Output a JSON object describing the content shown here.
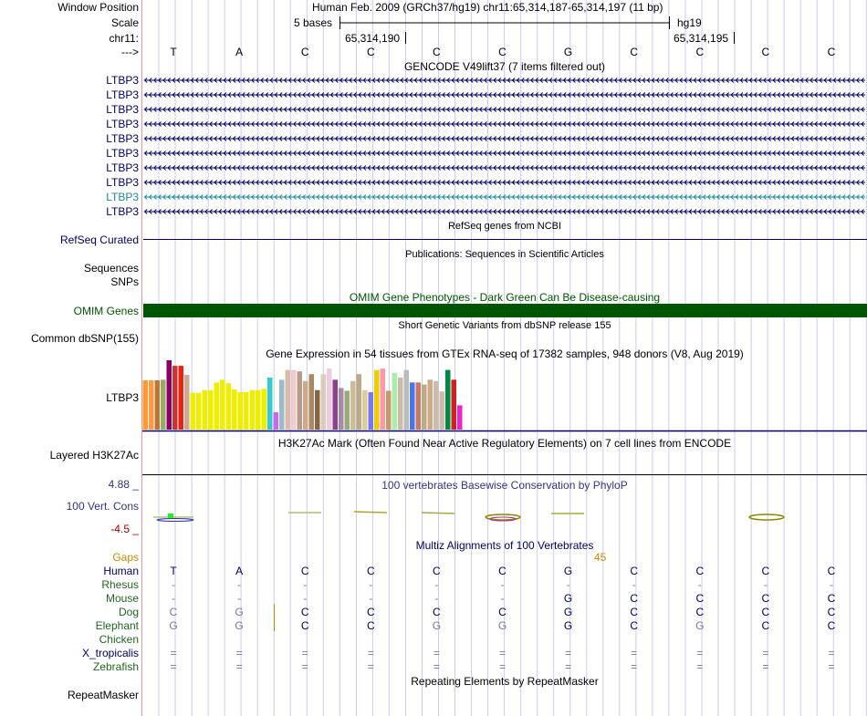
{
  "colors": {
    "label_blue": "#000066",
    "teal": "#1a8a9a",
    "omim_green": "#005500",
    "red_neg": "#990000",
    "gaps_orange": "#cc8800",
    "species_green": "#226622",
    "cons_blue": "#333388",
    "grid": "#ccccee",
    "left_rule": "#ee9999",
    "dim_base": "#7777aa"
  },
  "header": {
    "window_position_label": "Window Position",
    "window_position_value": "Human Feb. 2009 (GRCh37/hg19)   chr11:65,314,187-65,314,197 (11 bp)",
    "scale_label": "Scale",
    "scale_text": "5 bases",
    "scale_assembly": "hg19",
    "chrom_label": "chr11:",
    "coord_left": "65,314,190",
    "coord_right": "65,314,195",
    "strand_label": "--->",
    "bases": [
      "T",
      "A",
      "C",
      "C",
      "C",
      "C",
      "G",
      "C",
      "C",
      "C",
      "C"
    ]
  },
  "gencode": {
    "title": "GENCODE V49lift37 (7 items filtered out)",
    "rows": [
      "LTBP3",
      "LTBP3",
      "LTBP3",
      "LTBP3",
      "LTBP3",
      "LTBP3",
      "LTBP3",
      "LTBP3",
      "LTBP3",
      "LTBP3"
    ],
    "highlight_row": 8,
    "strand_glyph": "<"
  },
  "refseq": {
    "title": "RefSeq genes from NCBI",
    "label": "RefSeq Curated"
  },
  "publications": {
    "title": "Publications: Sequences in Scientific Articles",
    "labels": [
      "Sequences",
      "SNPs"
    ]
  },
  "omim": {
    "title": "OMIM Gene Phenotypes - Dark Green Can Be Disease-causing",
    "label": "OMIM Genes"
  },
  "dbsnp": {
    "title": "Short Genetic Variants from dbSNP release 155",
    "label": "Common dbSNP(155)"
  },
  "gtex": {
    "title": "Gene Expression in 54 tissues from GTEx RNA-seq of 17382 samples, 948 donors (V8, Aug 2019)",
    "label": "LTBP3",
    "bars": [
      {
        "v": 0.71,
        "c": "#ff9933"
      },
      {
        "v": 0.71,
        "c": "#ff9944"
      },
      {
        "v": 0.71,
        "c": "#bb7733"
      },
      {
        "v": 0.72,
        "c": "#99aa66"
      },
      {
        "v": 1.0,
        "c": "#880066"
      },
      {
        "v": 0.92,
        "c": "#cc3333"
      },
      {
        "v": 0.92,
        "c": "#ee2211"
      },
      {
        "v": 0.79,
        "c": "#ccaa99"
      },
      {
        "v": 0.53,
        "c": "#eeee00"
      },
      {
        "v": 0.53,
        "c": "#eeee00"
      },
      {
        "v": 0.57,
        "c": "#eeee00"
      },
      {
        "v": 0.57,
        "c": "#eeee00"
      },
      {
        "v": 0.68,
        "c": "#eeee00"
      },
      {
        "v": 0.72,
        "c": "#eeee00"
      },
      {
        "v": 0.67,
        "c": "#eeee00"
      },
      {
        "v": 0.58,
        "c": "#eeee00"
      },
      {
        "v": 0.54,
        "c": "#eeee00"
      },
      {
        "v": 0.54,
        "c": "#eeee00"
      },
      {
        "v": 0.57,
        "c": "#eeee00"
      },
      {
        "v": 0.57,
        "c": "#eeee00"
      },
      {
        "v": 0.59,
        "c": "#eeee00"
      },
      {
        "v": 0.75,
        "c": "#33cccc"
      },
      {
        "v": 0.25,
        "c": "#cc66ee"
      },
      {
        "v": 0.72,
        "c": "#99bbcc"
      },
      {
        "v": 0.86,
        "c": "#ddbbaa"
      },
      {
        "v": 0.86,
        "c": "#eecccc"
      },
      {
        "v": 0.84,
        "c": "#bb9988"
      },
      {
        "v": 0.7,
        "c": "#ccaa88"
      },
      {
        "v": 0.8,
        "c": "#aa8866"
      },
      {
        "v": 0.57,
        "c": "#886644"
      },
      {
        "v": 0.8,
        "c": "#ddccbb"
      },
      {
        "v": 0.88,
        "c": "#eeccdd"
      },
      {
        "v": 0.72,
        "c": "#884488"
      },
      {
        "v": 0.6,
        "c": "#aa88aa"
      },
      {
        "v": 0.56,
        "c": "#99aa77"
      },
      {
        "v": 0.7,
        "c": "#ccbb99"
      },
      {
        "v": 0.8,
        "c": "#bbaa88"
      },
      {
        "v": 0.57,
        "c": "#ddcc99"
      },
      {
        "v": 0.54,
        "c": "#7777ee"
      },
      {
        "v": 0.86,
        "c": "#eecc00"
      },
      {
        "v": 0.88,
        "c": "#ff99aa"
      },
      {
        "v": 0.56,
        "c": "#cc9966"
      },
      {
        "v": 0.82,
        "c": "#aaeeaa"
      },
      {
        "v": 0.75,
        "c": "#ccbbaa"
      },
      {
        "v": 0.86,
        "c": "#bbbbbb"
      },
      {
        "v": 0.68,
        "c": "#4477ee"
      },
      {
        "v": 0.68,
        "c": "#cc7766"
      },
      {
        "v": 0.65,
        "c": "#bbaa88"
      },
      {
        "v": 0.72,
        "c": "#ccaa88"
      },
      {
        "v": 0.7,
        "c": "#ccbbaa"
      },
      {
        "v": 0.55,
        "c": "#ccbbaa"
      },
      {
        "v": 0.86,
        "c": "#008844"
      },
      {
        "v": 0.72,
        "c": "#cc2222"
      },
      {
        "v": 0.35,
        "c": "#ee22cc"
      }
    ]
  },
  "h3k27ac": {
    "title": "H3K27Ac Mark (Often Found Near Active Regulatory Elements) on 7 cell lines from ENCODE",
    "label": "Layered H3K27Ac"
  },
  "conservation": {
    "title": "100 vertebrates Basewise Conservation by PhyloP",
    "label": "100 Vert. Cons",
    "max_label": "4.88 _",
    "min_label": "-4.5 _"
  },
  "multiz": {
    "title": "Multiz Alignments of 100 Vertebrates",
    "gaps_label": "Gaps",
    "gaps_value": "45",
    "species": [
      {
        "name": "Human",
        "bases": [
          "T",
          "A",
          "C",
          "C",
          "C",
          "C",
          "G",
          "C",
          "C",
          "C",
          "C"
        ],
        "dim": [
          0,
          0,
          0,
          0,
          0,
          0,
          0,
          0,
          0,
          0,
          0
        ]
      },
      {
        "name": "Rhesus",
        "bases": [
          "-",
          "-",
          "-",
          "-",
          "-",
          "-",
          "-",
          "-",
          "-",
          "-",
          "-"
        ],
        "dim": [
          1,
          1,
          1,
          1,
          1,
          1,
          1,
          1,
          1,
          1,
          1
        ]
      },
      {
        "name": "Mouse",
        "bases": [
          "-",
          "-",
          "-",
          "-",
          "-",
          "-",
          "G",
          "C",
          "C",
          "C",
          "C"
        ],
        "dim": [
          1,
          1,
          1,
          1,
          1,
          1,
          0,
          0,
          0,
          0,
          0
        ]
      },
      {
        "name": "Dog",
        "bases": [
          "C",
          "G",
          "C",
          "C",
          "C",
          "C",
          "G",
          "C",
          "C",
          "C",
          "C"
        ],
        "dim": [
          1,
          1,
          0,
          0,
          0,
          0,
          0,
          0,
          0,
          0,
          0
        ]
      },
      {
        "name": "Elephant",
        "bases": [
          "G",
          "G",
          "C",
          "C",
          "G",
          "G",
          "G",
          "C",
          "G",
          "C",
          "C"
        ],
        "dim": [
          1,
          1,
          0,
          0,
          1,
          1,
          0,
          0,
          1,
          0,
          0
        ]
      },
      {
        "name": "Chicken",
        "bases": [
          "",
          "",
          "",
          "",
          "",
          "",
          "",
          "",
          "",
          "",
          ""
        ],
        "dim": [
          0,
          0,
          0,
          0,
          0,
          0,
          0,
          0,
          0,
          0,
          0
        ]
      },
      {
        "name": "X_tropicalis",
        "bases": [
          "=",
          "=",
          "=",
          "=",
          "=",
          "=",
          "=",
          "=",
          "=",
          "=",
          "="
        ],
        "dim": [
          1,
          1,
          1,
          1,
          1,
          1,
          1,
          1,
          1,
          1,
          1
        ]
      },
      {
        "name": "Zebrafish",
        "bases": [
          "=",
          "=",
          "=",
          "=",
          "=",
          "=",
          "=",
          "=",
          "=",
          "=",
          "="
        ],
        "dim": [
          1,
          1,
          1,
          1,
          1,
          1,
          1,
          1,
          1,
          1,
          1
        ]
      }
    ]
  },
  "repeatmasker": {
    "title": "Repeating Elements by RepeatMasker",
    "label": "RepeatMasker"
  }
}
